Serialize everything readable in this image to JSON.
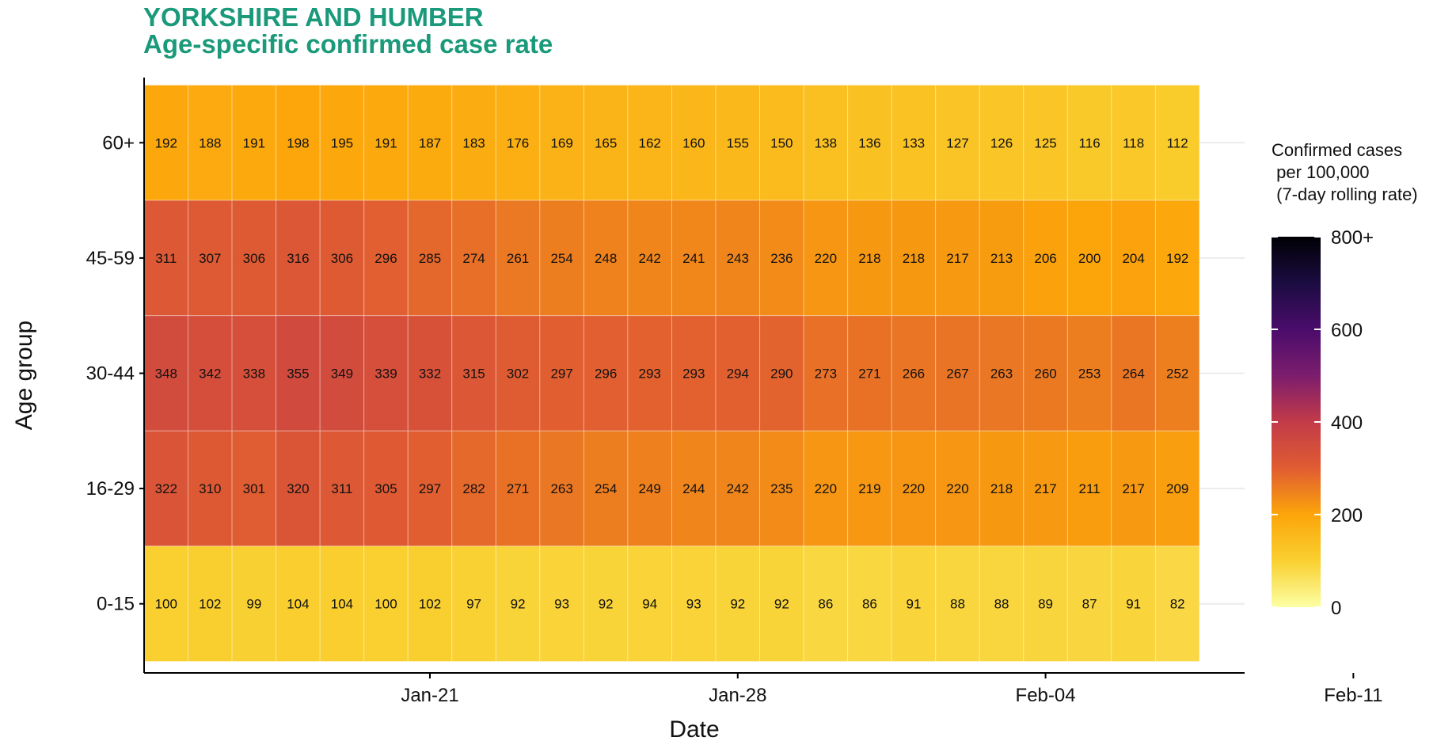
{
  "title_line1": "YORKSHIRE AND HUMBER",
  "title_line2": "Age-specific confirmed case rate",
  "chart_data": {
    "type": "heatmap",
    "xlabel": "Date",
    "ylabel": "Age group",
    "x_tick_labels": [
      "Jan-21",
      "Jan-28",
      "Feb-04",
      "Feb-11"
    ],
    "x_tick_day_index": [
      6.5,
      13.5,
      20.5,
      27.5
    ],
    "age_groups": [
      "60+",
      "45-59",
      "30-44",
      "16-29",
      "0-15"
    ],
    "rows": [
      [
        192,
        188,
        191,
        198,
        195,
        191,
        187,
        183,
        176,
        169,
        165,
        162,
        160,
        155,
        150,
        138,
        136,
        133,
        127,
        126,
        125,
        116,
        118,
        112
      ],
      [
        311,
        307,
        306,
        316,
        306,
        296,
        285,
        274,
        261,
        254,
        248,
        242,
        241,
        243,
        236,
        220,
        218,
        218,
        217,
        213,
        206,
        200,
        204,
        192
      ],
      [
        348,
        342,
        338,
        355,
        349,
        339,
        332,
        315,
        302,
        297,
        296,
        293,
        293,
        294,
        290,
        273,
        271,
        266,
        267,
        263,
        260,
        253,
        264,
        252
      ],
      [
        322,
        310,
        301,
        320,
        311,
        305,
        297,
        282,
        271,
        263,
        254,
        249,
        244,
        242,
        235,
        220,
        219,
        220,
        220,
        218,
        217,
        211,
        217,
        209
      ],
      [
        100,
        102,
        99,
        104,
        104,
        100,
        102,
        97,
        92,
        93,
        92,
        94,
        93,
        92,
        92,
        86,
        86,
        91,
        88,
        88,
        89,
        87,
        91,
        82
      ]
    ],
    "legend": {
      "title_lines": [
        "Confirmed cases",
        " per 100,000",
        " (7-day rolling rate)"
      ],
      "range": [
        0,
        800
      ],
      "ticks": [
        0,
        200,
        400,
        600,
        800
      ],
      "tick_labels": [
        "0",
        "200",
        "400",
        "600",
        "800+"
      ],
      "colormap_stops": [
        {
          "value": 0,
          "color": "#fcffa4"
        },
        {
          "value": 100,
          "color": "#f9d030"
        },
        {
          "value": 200,
          "color": "#fca50a"
        },
        {
          "value": 300,
          "color": "#e05c32"
        },
        {
          "value": 400,
          "color": "#c33b48"
        },
        {
          "value": 500,
          "color": "#7c1d6d"
        },
        {
          "value": 600,
          "color": "#4a0c6b"
        },
        {
          "value": 700,
          "color": "#1b0c41"
        },
        {
          "value": 800,
          "color": "#000004"
        }
      ]
    }
  }
}
